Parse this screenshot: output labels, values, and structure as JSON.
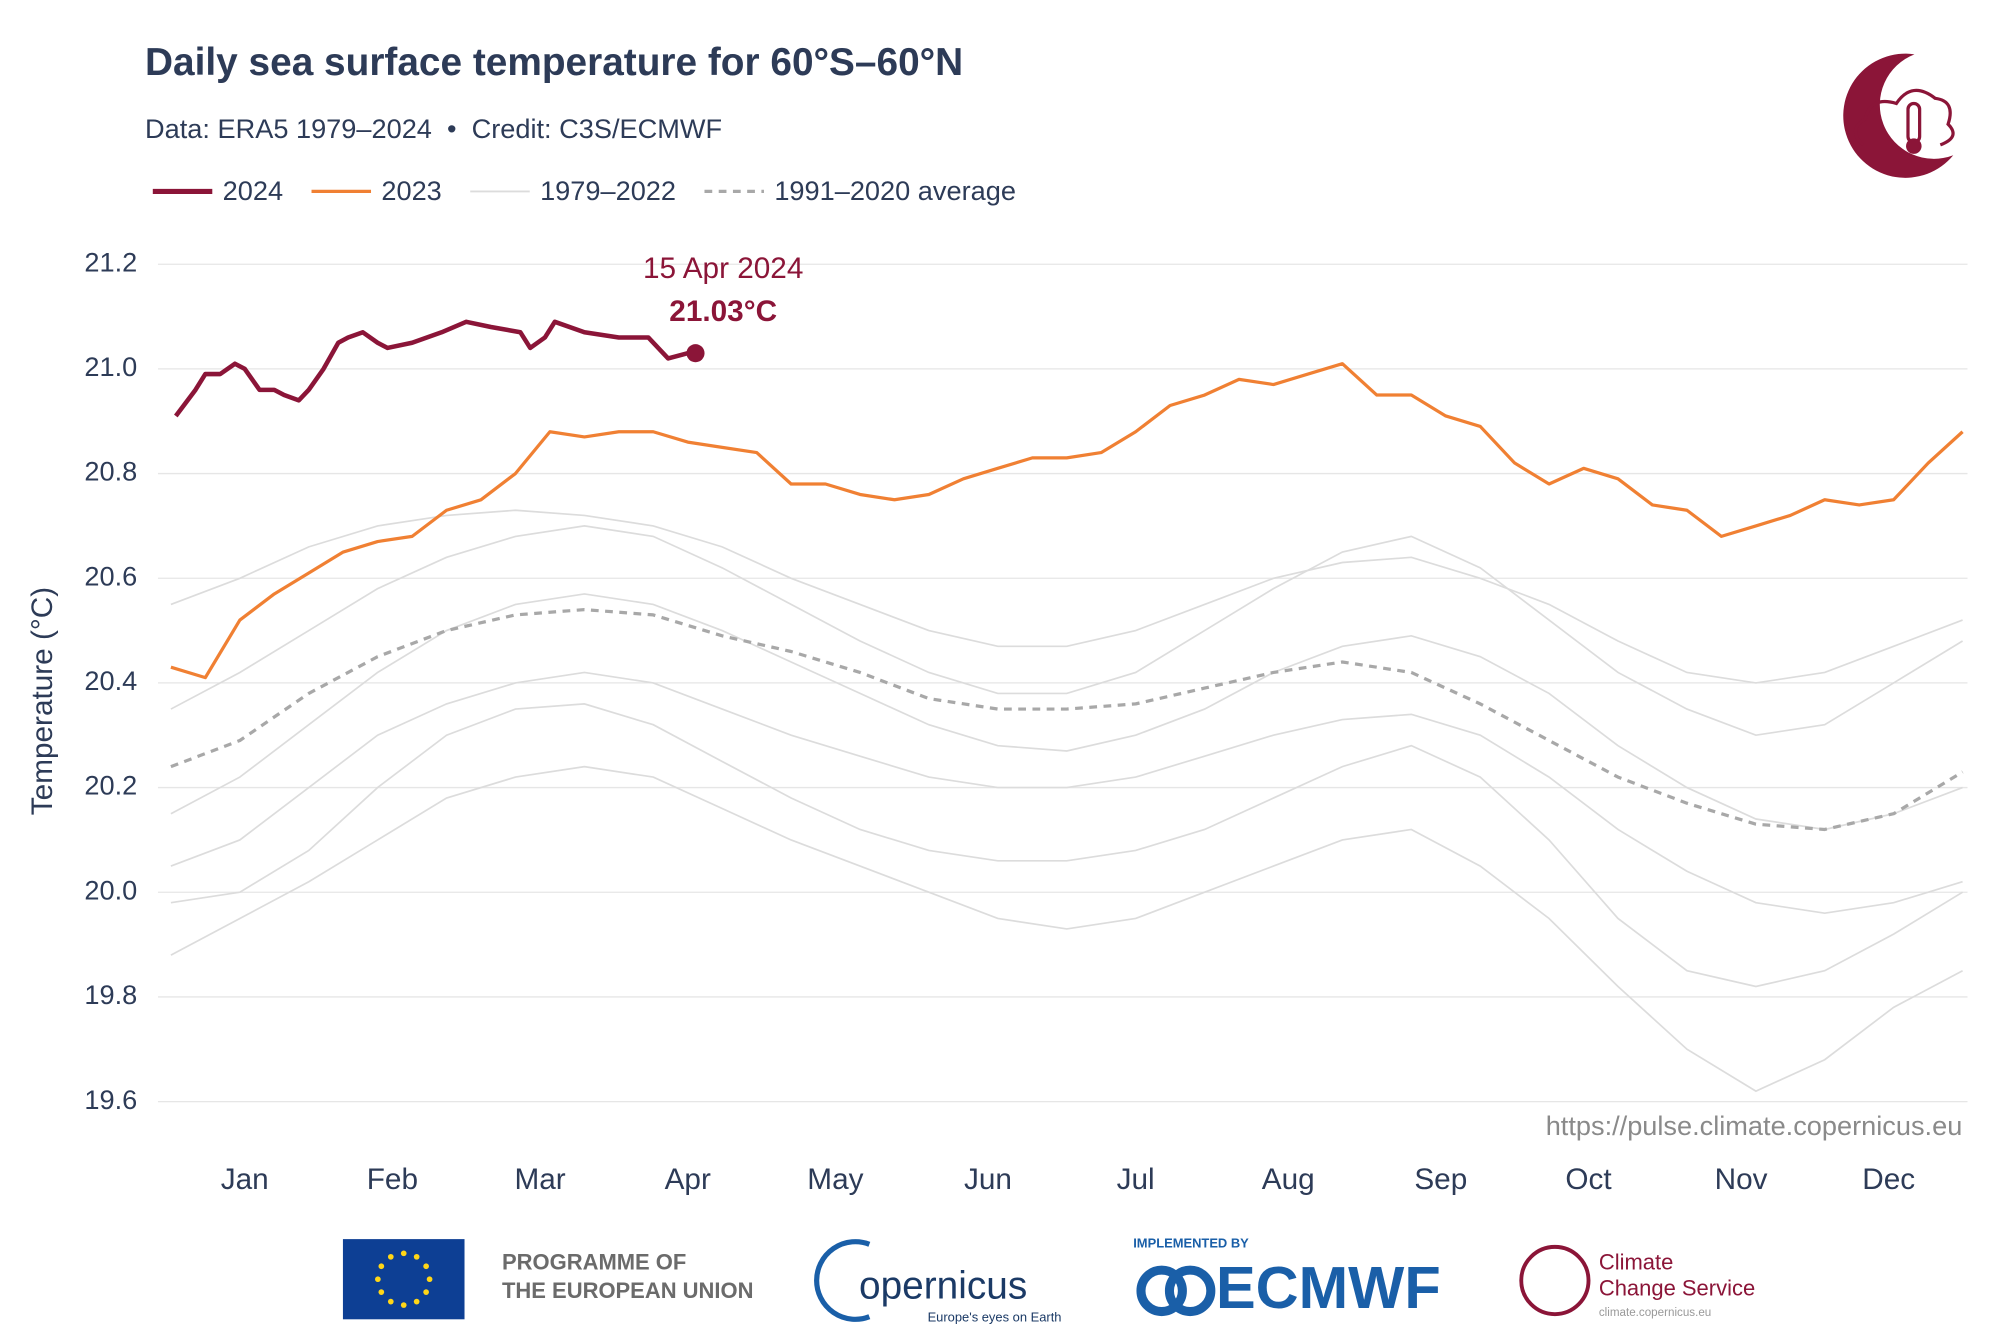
{
  "chart_data": {
    "type": "line",
    "title": "Daily sea surface temperature for 60°S–60°N",
    "subtitle": "Data: ERA5 1979–2024  •  Credit: C3S/ECMWF",
    "y_label": "Temperature (°C)",
    "source": "https://pulse.climate.copernicus.eu",
    "xlim": [
      1,
      366
    ],
    "ylim": [
      19.53,
      21.26
    ],
    "xticks": [
      {
        "value": 16,
        "label": "Jan"
      },
      {
        "value": 46,
        "label": "Feb"
      },
      {
        "value": 76,
        "label": "Mar"
      },
      {
        "value": 106,
        "label": "Apr"
      },
      {
        "value": 136,
        "label": "May"
      },
      {
        "value": 167,
        "label": "Jun"
      },
      {
        "value": 197,
        "label": "Jul"
      },
      {
        "value": 228,
        "label": "Aug"
      },
      {
        "value": 259,
        "label": "Sep"
      },
      {
        "value": 289,
        "label": "Oct"
      },
      {
        "value": 320,
        "label": "Nov"
      },
      {
        "value": 350,
        "label": "Dec"
      }
    ],
    "yticks": [
      19.6,
      19.8,
      {
        "value": 20,
        "label": "20.0"
      },
      20.2,
      20.4,
      20.6,
      20.8,
      {
        "value": 21,
        "label": "21.0"
      },
      21.2
    ],
    "grid": true,
    "series": [
      {
        "name": "2024",
        "color": "#8b1538",
        "x": [
          2,
          6,
          8,
          11,
          14,
          16,
          19,
          22,
          24,
          27,
          29,
          32,
          35,
          37,
          40,
          43,
          45,
          50,
          56,
          61,
          66,
          72,
          74,
          77,
          79,
          85,
          92,
          98,
          102,
          106
        ],
        "values": [
          20.91,
          20.96,
          20.99,
          20.99,
          21.01,
          21.0,
          20.96,
          20.96,
          20.95,
          20.94,
          20.96,
          21.0,
          21.05,
          21.06,
          21.07,
          21.05,
          21.04,
          21.05,
          21.07,
          21.09,
          21.08,
          21.07,
          21.04,
          21.06,
          21.09,
          21.07,
          21.06,
          21.06,
          21.02,
          21.03
        ]
      },
      {
        "name": "2023",
        "color": "#f08033",
        "x": [
          1,
          8,
          15,
          22,
          29,
          36,
          43,
          50,
          57,
          64,
          71,
          78,
          85,
          92,
          99,
          106,
          113,
          120,
          127,
          134,
          141,
          148,
          155,
          162,
          169,
          176,
          183,
          190,
          197,
          204,
          211,
          218,
          225,
          232,
          239,
          246,
          253,
          260,
          267,
          274,
          281,
          288,
          295,
          302,
          309,
          316,
          323,
          330,
          337,
          344,
          351,
          358,
          365
        ],
        "values": [
          20.43,
          20.41,
          20.52,
          20.57,
          20.61,
          20.65,
          20.67,
          20.68,
          20.73,
          20.75,
          20.8,
          20.88,
          20.87,
          20.88,
          20.88,
          20.86,
          20.85,
          20.84,
          20.78,
          20.78,
          20.76,
          20.75,
          20.76,
          20.79,
          20.81,
          20.83,
          20.83,
          20.84,
          20.88,
          20.93,
          20.95,
          20.98,
          20.97,
          20.99,
          21.01,
          20.95,
          20.95,
          20.91,
          20.89,
          20.82,
          20.78,
          20.81,
          20.79,
          20.74,
          20.73,
          20.68,
          20.7,
          20.72,
          20.75,
          20.74,
          20.75,
          20.82,
          20.88
        ]
      },
      {
        "name": "1979–2022",
        "color": "#dcdcdc",
        "x": [
          1,
          15,
          29,
          43,
          57,
          71,
          85,
          99,
          113,
          127,
          141,
          155,
          169,
          183,
          197,
          211,
          225,
          239,
          253,
          267,
          281,
          295,
          309,
          323,
          337,
          351,
          365
        ],
        "lines": [
          [
            20.55,
            20.6,
            20.66,
            20.7,
            20.72,
            20.73,
            20.72,
            20.7,
            20.66,
            20.6,
            20.55,
            20.5,
            20.47,
            20.47,
            20.5,
            20.55,
            20.6,
            20.63,
            20.64,
            20.6,
            20.55,
            20.48,
            20.42,
            20.4,
            20.42,
            20.47,
            20.52
          ],
          [
            20.05,
            20.1,
            20.2,
            20.3,
            20.36,
            20.4,
            20.42,
            20.4,
            20.35,
            20.3,
            20.26,
            20.22,
            20.2,
            20.2,
            20.22,
            20.26,
            20.3,
            20.33,
            20.34,
            20.3,
            20.22,
            20.12,
            20.04,
            19.98,
            19.96,
            19.98,
            20.02
          ],
          [
            19.88,
            19.95,
            20.02,
            20.1,
            20.18,
            20.22,
            20.24,
            20.22,
            20.16,
            20.1,
            20.05,
            20.0,
            19.95,
            19.93,
            19.95,
            20.0,
            20.05,
            20.1,
            20.12,
            20.05,
            19.95,
            19.82,
            19.7,
            19.62,
            19.68,
            19.78,
            19.85
          ],
          [
            20.15,
            20.22,
            20.32,
            20.42,
            20.5,
            20.55,
            20.57,
            20.55,
            20.5,
            20.44,
            20.38,
            20.32,
            20.28,
            20.27,
            20.3,
            20.35,
            20.42,
            20.47,
            20.49,
            20.45,
            20.38,
            20.28,
            20.2,
            20.14,
            20.12,
            20.15,
            20.2
          ],
          [
            20.35,
            20.42,
            20.5,
            20.58,
            20.64,
            20.68,
            20.7,
            20.68,
            20.62,
            20.55,
            20.48,
            20.42,
            20.38,
            20.38,
            20.42,
            20.5,
            20.58,
            20.65,
            20.68,
            20.62,
            20.52,
            20.42,
            20.35,
            20.3,
            20.32,
            20.4,
            20.48
          ],
          [
            19.98,
            20.0,
            20.08,
            20.2,
            20.3,
            20.35,
            20.36,
            20.32,
            20.25,
            20.18,
            20.12,
            20.08,
            20.06,
            20.06,
            20.08,
            20.12,
            20.18,
            20.24,
            20.28,
            20.22,
            20.1,
            19.95,
            19.85,
            19.82,
            19.85,
            19.92,
            20.0
          ]
        ]
      },
      {
        "name": "1991–2020 average",
        "color": "#a8a8a8",
        "dashed": true,
        "x": [
          1,
          15,
          29,
          43,
          57,
          71,
          85,
          99,
          113,
          127,
          141,
          155,
          169,
          183,
          197,
          211,
          225,
          239,
          253,
          267,
          281,
          295,
          309,
          323,
          337,
          351,
          365
        ],
        "values": [
          20.24,
          20.29,
          20.38,
          20.45,
          20.5,
          20.53,
          20.54,
          20.53,
          20.49,
          20.46,
          20.42,
          20.37,
          20.35,
          20.35,
          20.36,
          20.39,
          20.42,
          20.44,
          20.42,
          20.36,
          20.29,
          20.22,
          20.17,
          20.13,
          20.12,
          20.15,
          20.23
        ]
      }
    ],
    "annotation": {
      "label": "15 Apr 2024",
      "x": 106,
      "value": 21.03,
      "value_label": "21.03°C"
    }
  },
  "footer": {
    "eu": [
      "PROGRAMME OF",
      "THE EUROPEAN UNION"
    ],
    "copernicus": "opernicus",
    "copernicus_tagline": "Europe's eyes on Earth",
    "implemented_by": "IMPLEMENTED BY",
    "ecmwf": "ECMWF",
    "c3s": [
      "Climate",
      "Change Service"
    ],
    "c3s_url": "climate.copernicus.eu"
  }
}
